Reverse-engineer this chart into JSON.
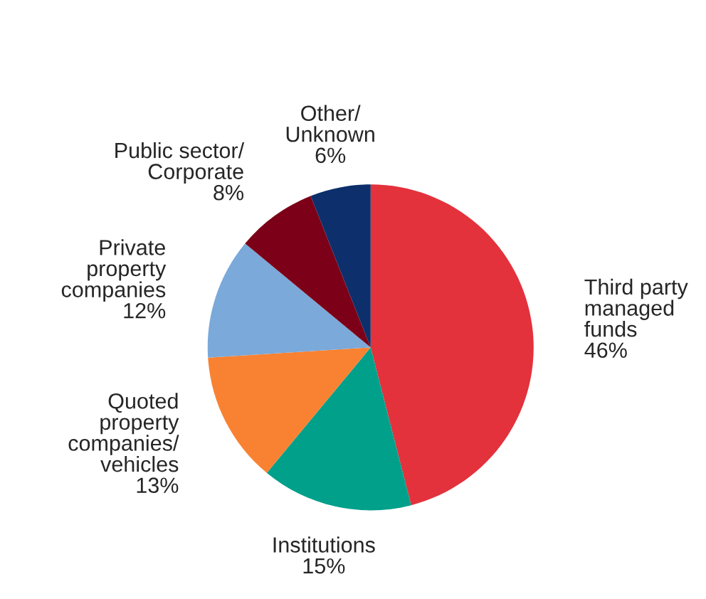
{
  "chart_data": {
    "type": "pie",
    "categories": [
      "Third party\nmanaged\nfunds",
      "Institutions",
      "Quoted\nproperty\ncompanies/\nvehicles",
      "Private\nproperty\ncompanies",
      "Public sector/\nCorporate",
      "Other/\nUnknown"
    ],
    "values": [
      46,
      15,
      13,
      12,
      8,
      6
    ],
    "value_labels": [
      "46%",
      "15%",
      "13%",
      "12%",
      "8%",
      "6%"
    ],
    "colors": [
      "#e3323c",
      "#00a08a",
      "#f98232",
      "#7aa9da",
      "#7c0017",
      "#0d2f6b"
    ]
  }
}
